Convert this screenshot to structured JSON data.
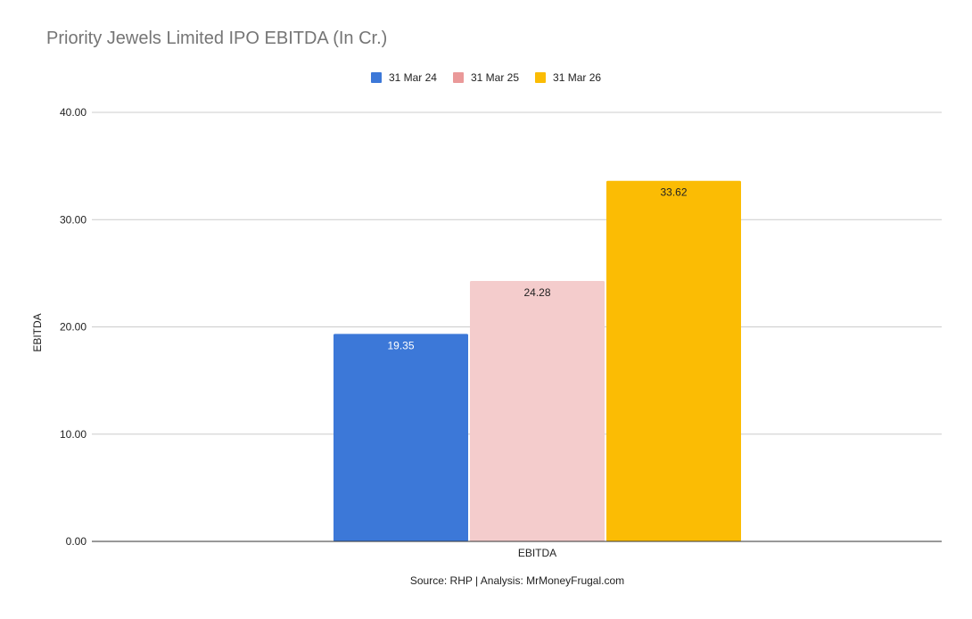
{
  "chart_data": {
    "type": "bar",
    "title": "Priority Jewels Limited IPO EBITDA (In Cr.)",
    "xlabel": "",
    "ylabel": "EBITDA",
    "categories": [
      "EBITDA"
    ],
    "series": [
      {
        "name": "31 Mar 24",
        "values": [
          19.35
        ],
        "color": "#3c78d8",
        "label_color": "#ffffff"
      },
      {
        "name": "31 Mar 25",
        "values": [
          24.28
        ],
        "color": "#f4cccc",
        "label_color": "#222222"
      },
      {
        "name": "31 Mar 26",
        "values": [
          33.62
        ],
        "color": "#fbbc04",
        "label_color": "#222222"
      }
    ],
    "legend_swatch_colors": [
      "#3c78d8",
      "#ea9999",
      "#fbbc04"
    ],
    "ylim": [
      0,
      40
    ],
    "yticks": [
      "0.00",
      "10.00",
      "20.00",
      "30.00",
      "40.00"
    ],
    "data_labels": [
      "19.35",
      "24.28",
      "33.62"
    ],
    "grid": true,
    "legend_position": "top"
  },
  "footer": {
    "source": "Source: RHP | Analysis: MrMoneyFrugal.com"
  }
}
